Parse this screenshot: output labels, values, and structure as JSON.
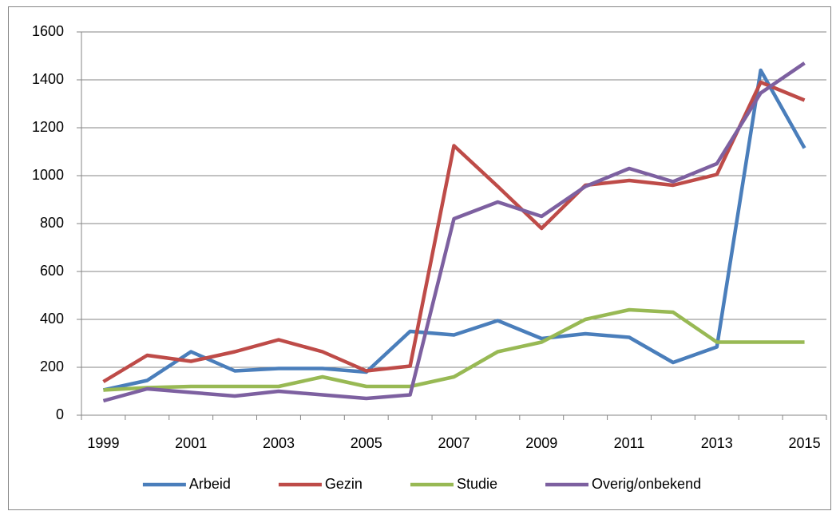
{
  "chart_data": {
    "type": "line",
    "categories": [
      "1999",
      null,
      "2001",
      null,
      "2003",
      null,
      "2005",
      null,
      "2007",
      null,
      "2009",
      null,
      "2011",
      null,
      "2013",
      null,
      "2015"
    ],
    "series": [
      {
        "name": "Arbeid",
        "color": "#4a7ebb",
        "values": [
          105,
          145,
          265,
          185,
          195,
          195,
          180,
          350,
          335,
          395,
          320,
          340,
          325,
          220,
          285,
          1440,
          1115
        ]
      },
      {
        "name": "Gezin",
        "color": "#be4b48",
        "values": [
          140,
          250,
          225,
          265,
          315,
          265,
          185,
          205,
          1125,
          955,
          780,
          960,
          980,
          960,
          1005,
          1390,
          1315
        ]
      },
      {
        "name": "Studie",
        "color": "#98b954",
        "values": [
          105,
          115,
          120,
          120,
          120,
          160,
          120,
          120,
          160,
          265,
          305,
          400,
          440,
          430,
          305,
          305,
          305
        ]
      },
      {
        "name": "Overig/onbekend",
        "color": "#7d60a0",
        "values": [
          60,
          110,
          95,
          80,
          100,
          85,
          70,
          85,
          820,
          890,
          830,
          955,
          1030,
          975,
          1050,
          1345,
          1470
        ]
      }
    ],
    "ylim": [
      0,
      1600
    ],
    "yticks": [
      0,
      200,
      400,
      600,
      800,
      1000,
      1200,
      1400,
      1600
    ],
    "grid": true,
    "legend": "bottom"
  }
}
